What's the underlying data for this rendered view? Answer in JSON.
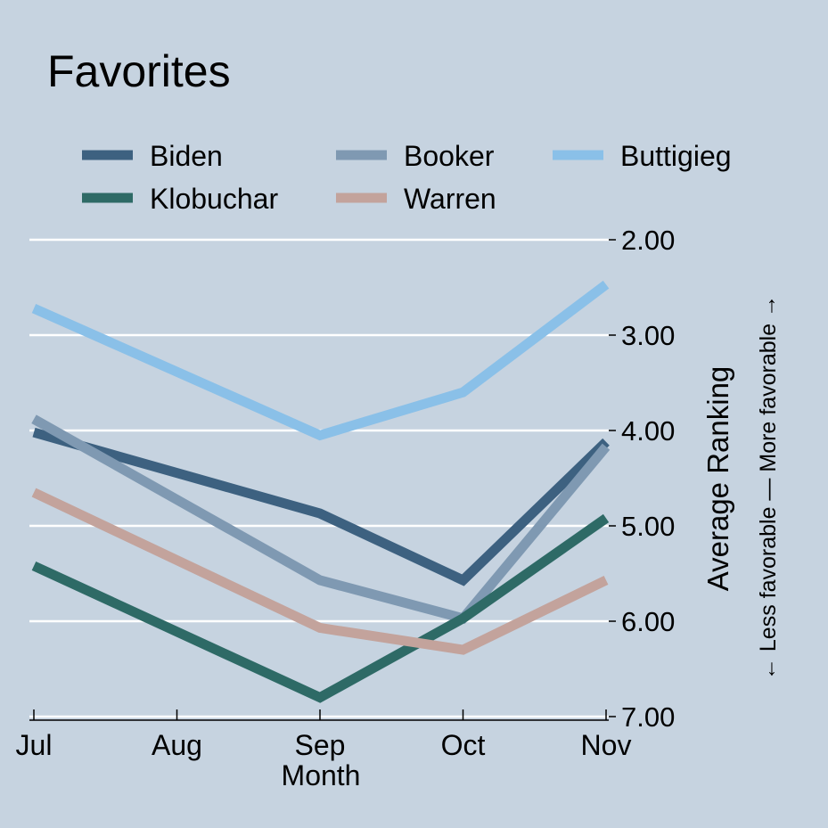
{
  "chart_data": {
    "type": "line",
    "title": "Favorites",
    "xlabel": "Month",
    "ylabel": "Average Ranking",
    "y_secondary_label": "← Less favorable — More favorable →",
    "categories": [
      "Jul",
      "Aug",
      "Sep",
      "Oct",
      "Nov"
    ],
    "x_positions": [
      7,
      8,
      9,
      10,
      11
    ],
    "yticks": [
      "2.00",
      "3.00",
      "4.00",
      "5.00",
      "6.00",
      "7.00"
    ],
    "ytick_values": [
      2,
      3,
      4,
      5,
      6,
      7
    ],
    "ylim": [
      2,
      7
    ],
    "y_inverted": true,
    "grid": true,
    "legend_position": "top",
    "series": [
      {
        "name": "Biden",
        "color": "#3d6180",
        "x": [
          7,
          9,
          10,
          11
        ],
        "values": [
          4.02,
          4.87,
          5.57,
          4.12
        ]
      },
      {
        "name": "Booker",
        "color": "#7f99b2",
        "x": [
          7,
          9,
          10,
          11
        ],
        "values": [
          3.88,
          5.57,
          5.97,
          4.17
        ]
      },
      {
        "name": "Buttigieg",
        "color": "#8ac0e8",
        "x": [
          7,
          9,
          10,
          11
        ],
        "values": [
          2.72,
          4.05,
          3.6,
          2.47
        ]
      },
      {
        "name": "Klobuchar",
        "color": "#2e6a66",
        "x": [
          7,
          9,
          10,
          11
        ],
        "values": [
          5.42,
          6.8,
          5.97,
          4.92
        ]
      },
      {
        "name": "Warren",
        "color": "#c3a39c",
        "x": [
          7,
          9,
          10,
          11
        ],
        "values": [
          4.65,
          6.07,
          6.3,
          5.57
        ]
      }
    ]
  }
}
